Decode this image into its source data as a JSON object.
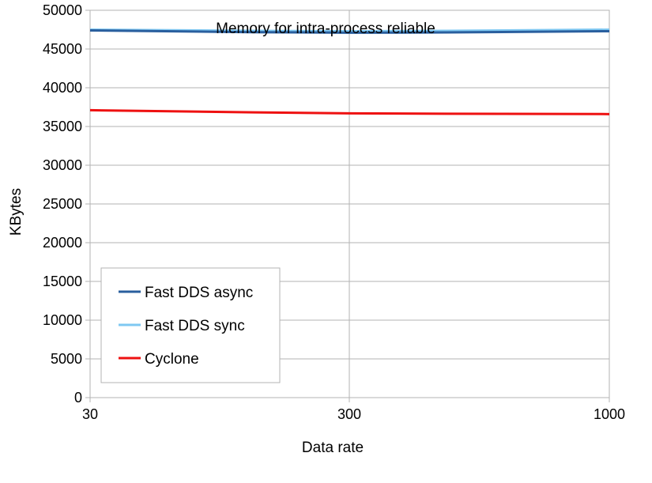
{
  "chart_data": {
    "type": "line",
    "title": "Memory for intra-process reliable",
    "xlabel": "Data rate",
    "ylabel": "KBytes",
    "x": [
      30,
      300,
      1000
    ],
    "x_tick_labels": [
      "30",
      "300",
      "1000"
    ],
    "x_scale": "categorical",
    "ylim": [
      0,
      50000
    ],
    "y_ticks": [
      0,
      5000,
      10000,
      15000,
      20000,
      25000,
      30000,
      35000,
      40000,
      45000,
      50000
    ],
    "y_tick_labels": [
      "0",
      "5000",
      "10000",
      "15000",
      "20000",
      "25000",
      "30000",
      "35000",
      "40000",
      "45000",
      "50000"
    ],
    "grid": true,
    "legend_position": "lower-left",
    "series": [
      {
        "name": "Fast DDS async",
        "color": "#2a5f9e",
        "values": [
          47400,
          47100,
          47300
        ]
      },
      {
        "name": "Fast DDS sync",
        "color": "#7fc8f2",
        "values": [
          47500,
          47300,
          47500
        ]
      },
      {
        "name": "Cyclone",
        "color": "#ee1111",
        "values": [
          37100,
          36700,
          36600
        ]
      }
    ]
  }
}
